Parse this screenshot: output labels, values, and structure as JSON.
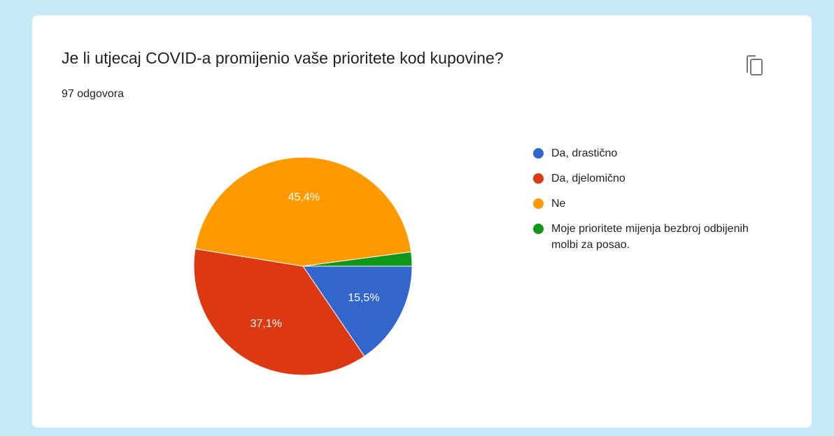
{
  "chart_data": {
    "type": "pie",
    "title": "Je li utjecaj COVID-a promijenio vaše prioritete kod kupovine?",
    "subtitle": "97 odgovora",
    "categories": [
      "Da, drastično",
      "Da, djelomično",
      "Ne",
      "Moje prioritete mijenja bezbroj odbijenih molbi za posao."
    ],
    "values": [
      15.5,
      37.1,
      45.4,
      2.1
    ],
    "value_labels": [
      "15,5%",
      "37,1%",
      "45,4%",
      null
    ],
    "colors": [
      "#3366cc",
      "#dc3912",
      "#ff9900",
      "#109618"
    ],
    "legend": "right"
  }
}
